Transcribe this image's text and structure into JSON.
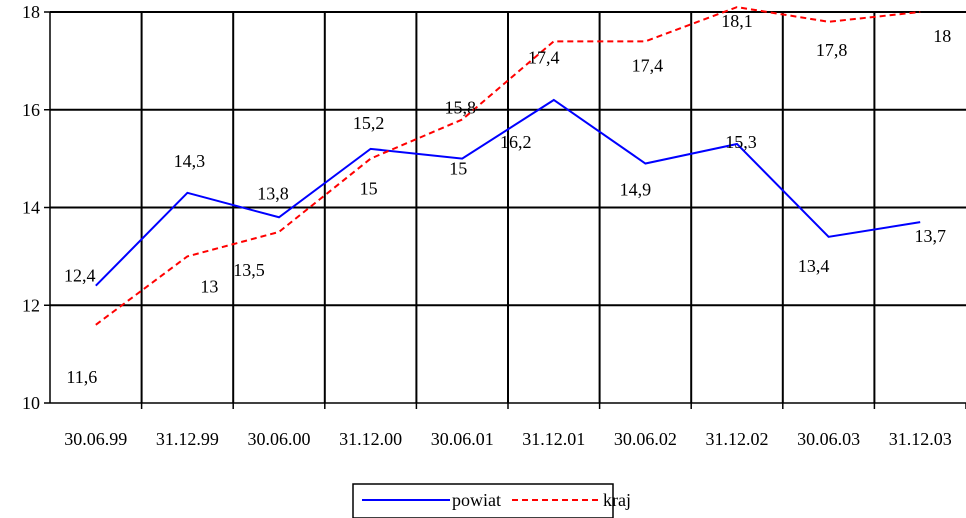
{
  "chart_data": {
    "type": "line",
    "categories": [
      "30.06.99",
      "31.12.99",
      "30.06.00",
      "31.12.00",
      "30.06.01",
      "31.12.01",
      "30.06.02",
      "31.12.02",
      "30.06.03",
      "31.12.03"
    ],
    "ylim": [
      10,
      18
    ],
    "yticks": [
      10,
      12,
      14,
      16,
      18
    ],
    "grid": true,
    "legend_position": "bottom",
    "series": [
      {
        "name": "powiat",
        "color": "#0000ff",
        "style": "solid",
        "values": [
          12.4,
          14.3,
          13.8,
          15.2,
          15,
          16.2,
          14.9,
          15.3,
          13.4,
          13.7
        ],
        "labels": [
          "12,4",
          "14,3",
          "13,8",
          "15,2",
          "15",
          "16,2",
          "14,9",
          "15,3",
          "13,4",
          "13,7"
        ]
      },
      {
        "name": "kraj",
        "color": "#ff0000",
        "style": "dashed",
        "values": [
          11.6,
          13,
          13.5,
          15,
          15.8,
          17.4,
          17.4,
          18.1,
          17.8,
          18
        ],
        "labels": [
          "11,6",
          "13",
          "13,5",
          "15",
          "15,8",
          "17,4",
          "17,4",
          "18,1",
          "17,8",
          "18"
        ]
      }
    ]
  }
}
